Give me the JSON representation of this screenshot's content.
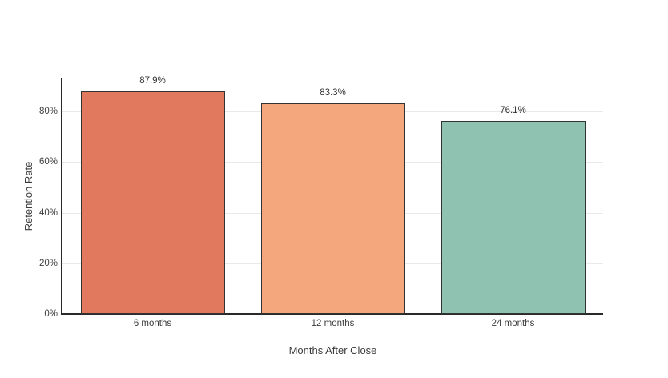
{
  "chart_data": {
    "type": "bar",
    "title": "",
    "xlabel": "Months After Close",
    "ylabel": "Retention Rate",
    "categories": [
      "6 months",
      "12 months",
      "24 months"
    ],
    "values": [
      87.9,
      83.3,
      76.1
    ],
    "bar_labels": [
      "87.9%",
      "83.3%",
      "76.1%"
    ],
    "bar_colors": [
      "#E1795E",
      "#F4A67C",
      "#8FC2B1"
    ],
    "bar_border_color": "#333333",
    "y_ticks": [
      {
        "value": 0,
        "label": "0%"
      },
      {
        "value": 20,
        "label": "20%"
      },
      {
        "value": 40,
        "label": "40%"
      },
      {
        "value": 60,
        "label": "60%"
      },
      {
        "value": 80,
        "label": "80%"
      }
    ],
    "ylim": [
      0,
      93
    ],
    "grid": "horizontal",
    "gridline_color": "#E9E9E9",
    "axis_line_color": "#2A2A2A",
    "text_color": "#3C3C3C",
    "background": "#FFFFFF",
    "legend": "none"
  }
}
